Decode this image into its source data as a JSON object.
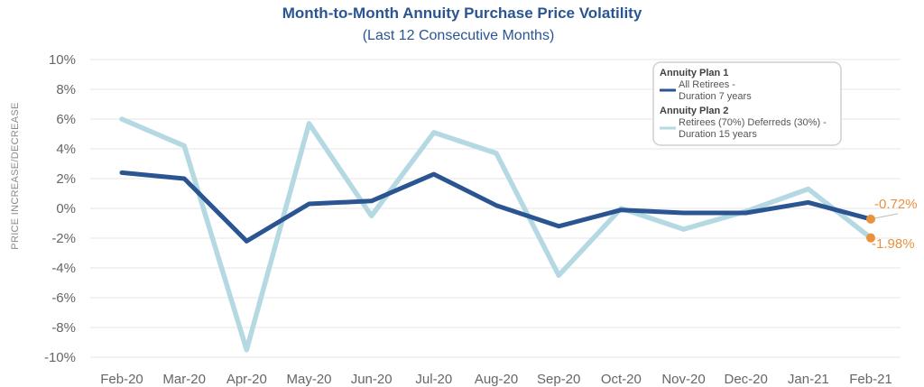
{
  "chart_data": {
    "type": "line",
    "title": "Month-to-Month Annuity Purchase Price Volatility",
    "subtitle": "(Last 12 Consecutive Months)",
    "ylabel": "PRICE INCREASE/DECREASE",
    "xlabel": "",
    "categories": [
      "Feb-20",
      "Mar-20",
      "Apr-20",
      "May-20",
      "Jun-20",
      "Jul-20",
      "Aug-20",
      "Sep-20",
      "Oct-20",
      "Nov-20",
      "Dec-20",
      "Jan-21",
      "Feb-21"
    ],
    "ylim": [
      -10,
      10
    ],
    "yticks": [
      10,
      8,
      6,
      4,
      2,
      0,
      -2,
      -4,
      -6,
      -8,
      -10
    ],
    "ytick_labels": [
      "10%",
      "8%",
      "6%",
      "4%",
      "2%",
      "0%",
      "-2%",
      "-4%",
      "-6%",
      "-8%",
      "-10%"
    ],
    "grid": true,
    "legend_position": "top-right",
    "series": [
      {
        "name": "Annuity Plan 1",
        "description_line1": "All Retirees -",
        "description_line2": "Duration 7 years",
        "color": "#2a5592",
        "values": [
          2.4,
          2.0,
          -2.2,
          0.3,
          0.5,
          2.3,
          0.2,
          -1.2,
          -0.1,
          -0.3,
          -0.3,
          0.4,
          -0.72
        ]
      },
      {
        "name": "Annuity Plan 2",
        "description_line1": "Retirees (70%) Deferreds (30%) -",
        "description_line2": "Duration 15 years",
        "color": "#b4d9e2",
        "values": [
          6.0,
          4.2,
          -9.5,
          5.7,
          -0.5,
          5.1,
          3.7,
          -4.5,
          0.0,
          -1.4,
          -0.2,
          1.3,
          -1.98
        ]
      }
    ],
    "annotations": [
      {
        "label": "-0.72%",
        "series": 0,
        "point": 12,
        "color": "#e8923d"
      },
      {
        "label": "-1.98%",
        "series": 1,
        "point": 12,
        "color": "#e8923d"
      }
    ]
  }
}
